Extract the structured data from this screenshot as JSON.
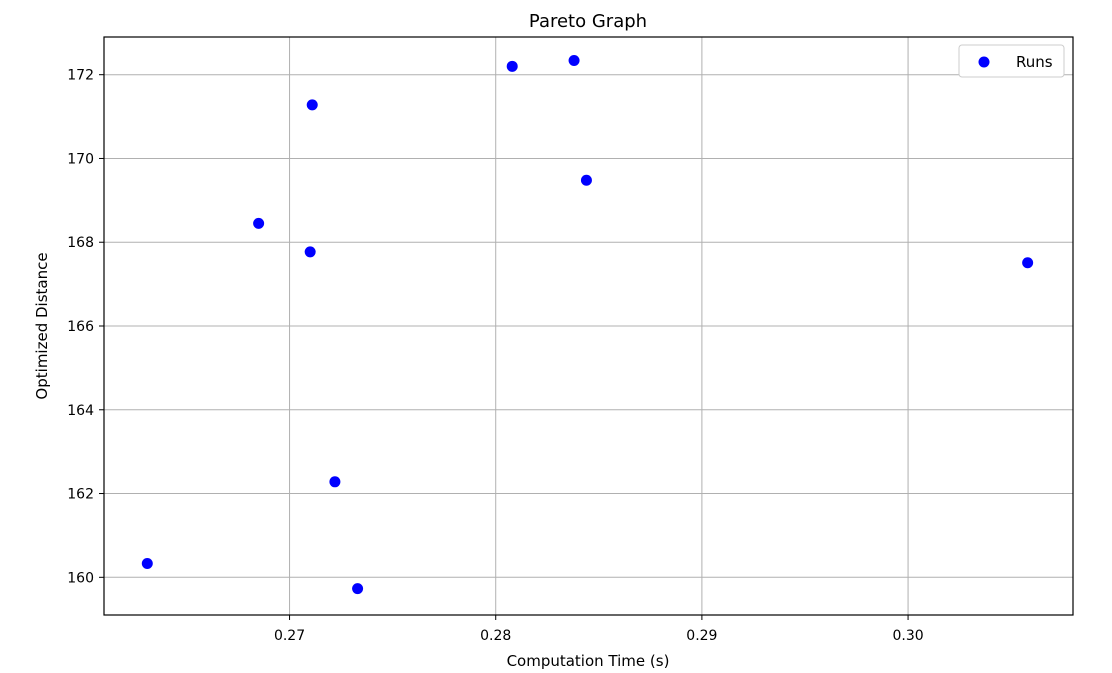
{
  "chart_data": {
    "type": "scatter",
    "title": "Pareto Graph",
    "xlabel": "Computation Time (s)",
    "ylabel": "Optimized Distance",
    "xlim": [
      0.261,
      0.308
    ],
    "ylim": [
      159.1,
      172.9
    ],
    "xticks": [
      0.27,
      0.28,
      0.29,
      0.3
    ],
    "xtick_labels": [
      "0.27",
      "0.28",
      "0.29",
      "0.30"
    ],
    "yticks": [
      160,
      162,
      164,
      166,
      168,
      170,
      172
    ],
    "ytick_labels": [
      "160",
      "162",
      "164",
      "166",
      "168",
      "170",
      "172"
    ],
    "grid": true,
    "legend_position": "top-right",
    "series": [
      {
        "name": "Runs",
        "color": "#0000ff",
        "points": [
          {
            "x": 0.2631,
            "y": 160.33
          },
          {
            "x": 0.2685,
            "y": 168.45
          },
          {
            "x": 0.271,
            "y": 167.77
          },
          {
            "x": 0.2711,
            "y": 171.28
          },
          {
            "x": 0.2722,
            "y": 162.28
          },
          {
            "x": 0.2733,
            "y": 159.73
          },
          {
            "x": 0.2808,
            "y": 172.2
          },
          {
            "x": 0.2838,
            "y": 172.34
          },
          {
            "x": 0.2844,
            "y": 169.48
          },
          {
            "x": 0.3058,
            "y": 167.51
          }
        ]
      }
    ]
  }
}
